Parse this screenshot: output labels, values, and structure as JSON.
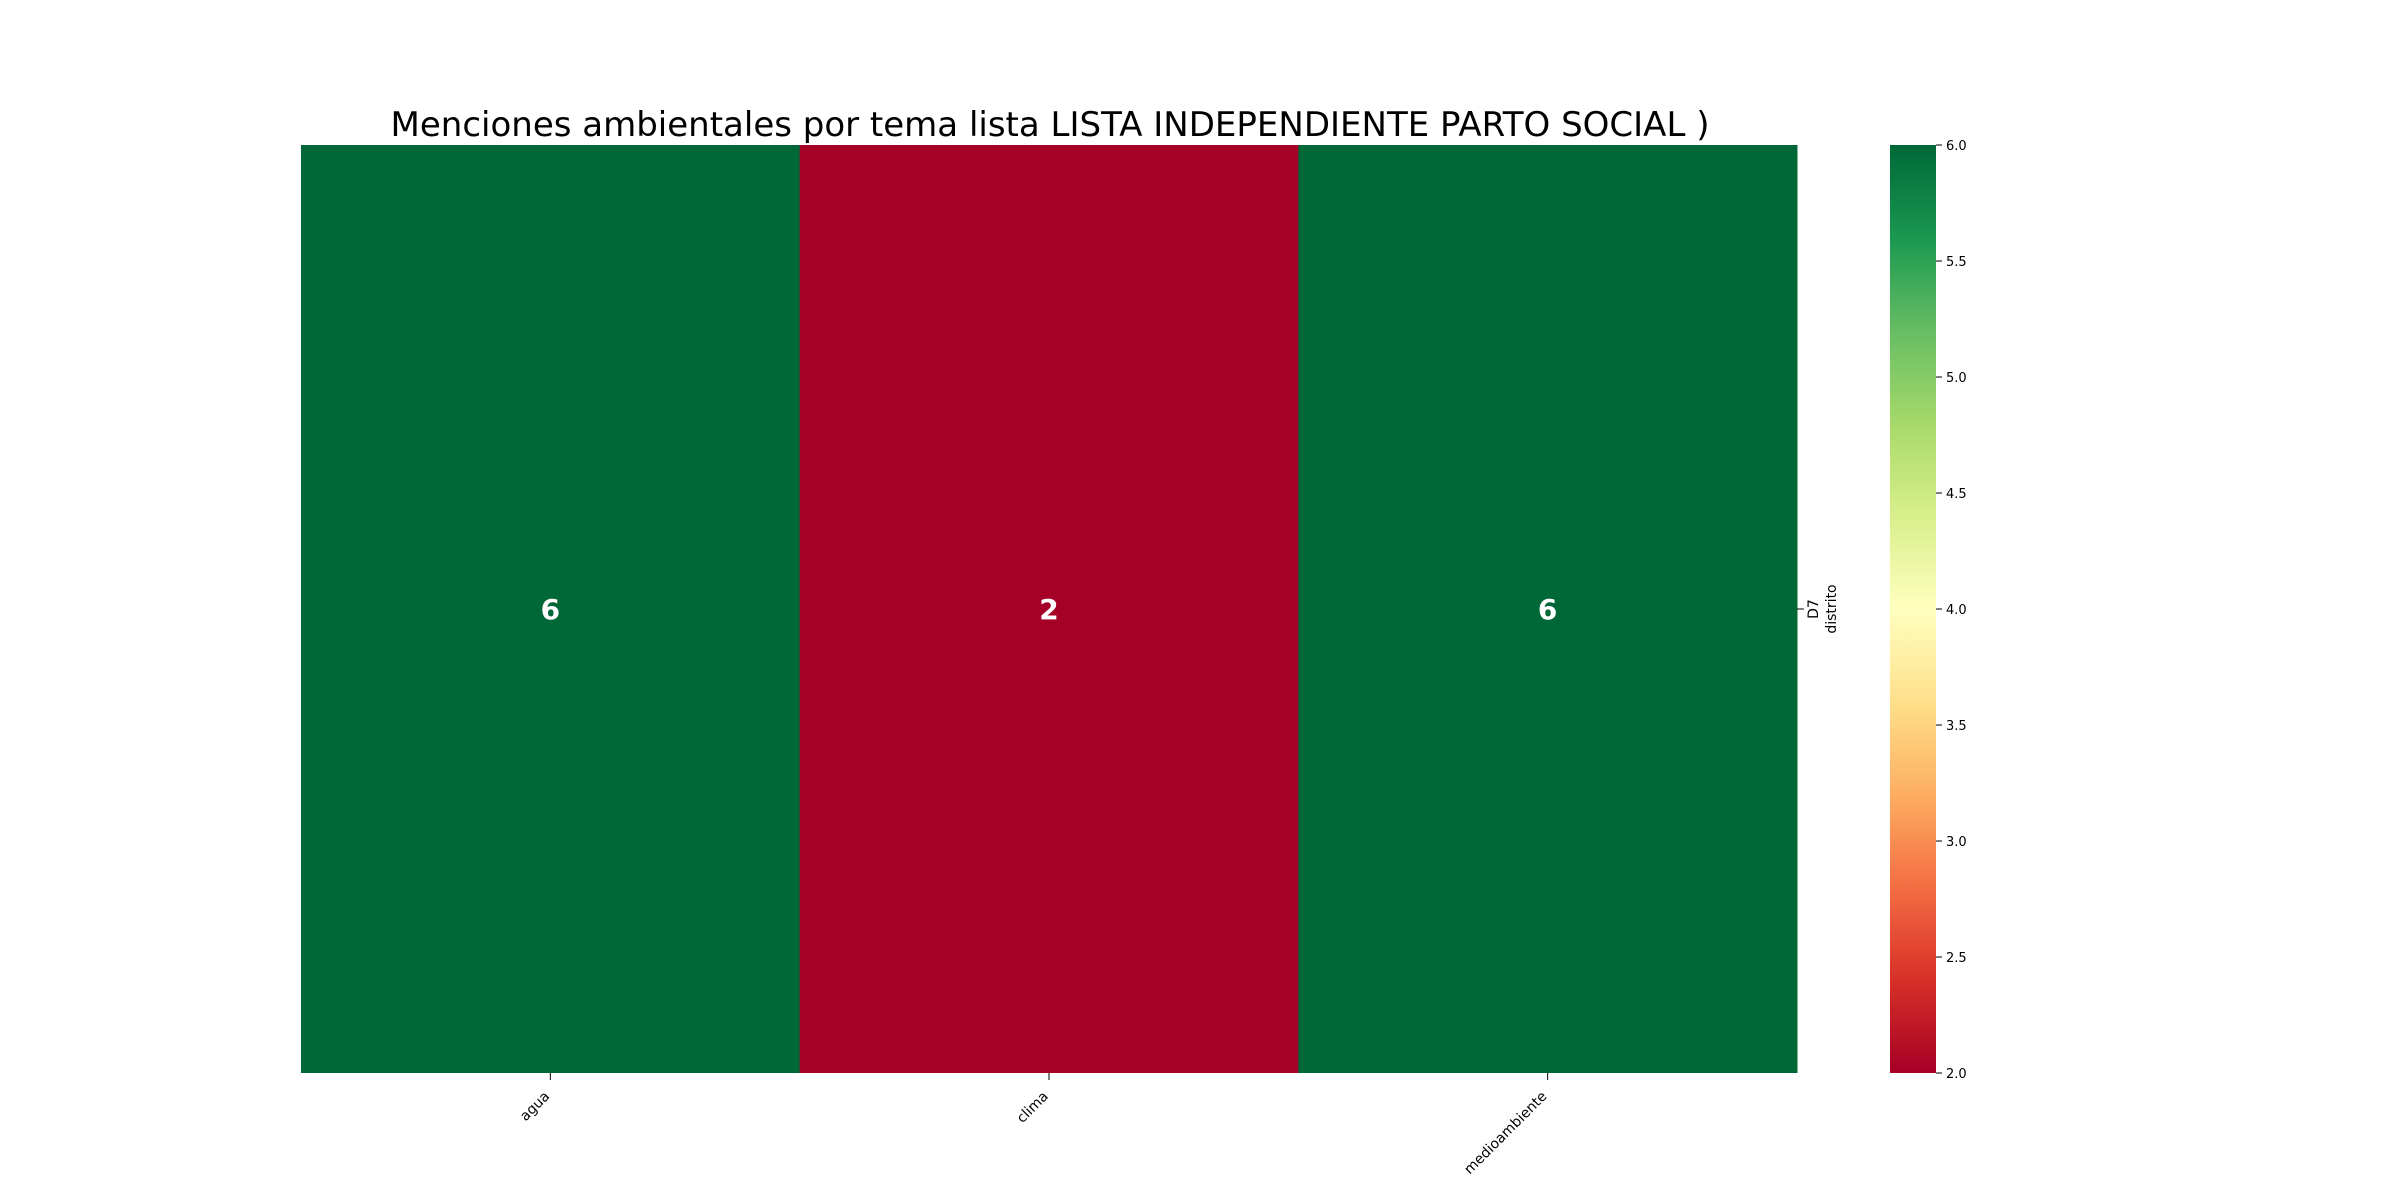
{
  "chart_data": {
    "type": "heatmap",
    "title": "Menciones ambientales por tema lista LISTA INDEPENDIENTE PARTO SOCIAL )",
    "x_categories": [
      "agua",
      "clima",
      "medioambiente"
    ],
    "y_categories": [
      "D7"
    ],
    "y_axis_label": "distrito",
    "values": [
      [
        6,
        2,
        6
      ]
    ],
    "value_labels": [
      [
        "6",
        "2",
        "6"
      ]
    ],
    "colorbar": {
      "min": 2.0,
      "max": 6.0,
      "ticks": [
        "2.0",
        "2.5",
        "3.0",
        "3.5",
        "4.0",
        "4.5",
        "5.0",
        "5.5",
        "6.0"
      ],
      "colormap": "RdYlGn",
      "low_color": "#a50026",
      "high_color": "#006837"
    }
  }
}
